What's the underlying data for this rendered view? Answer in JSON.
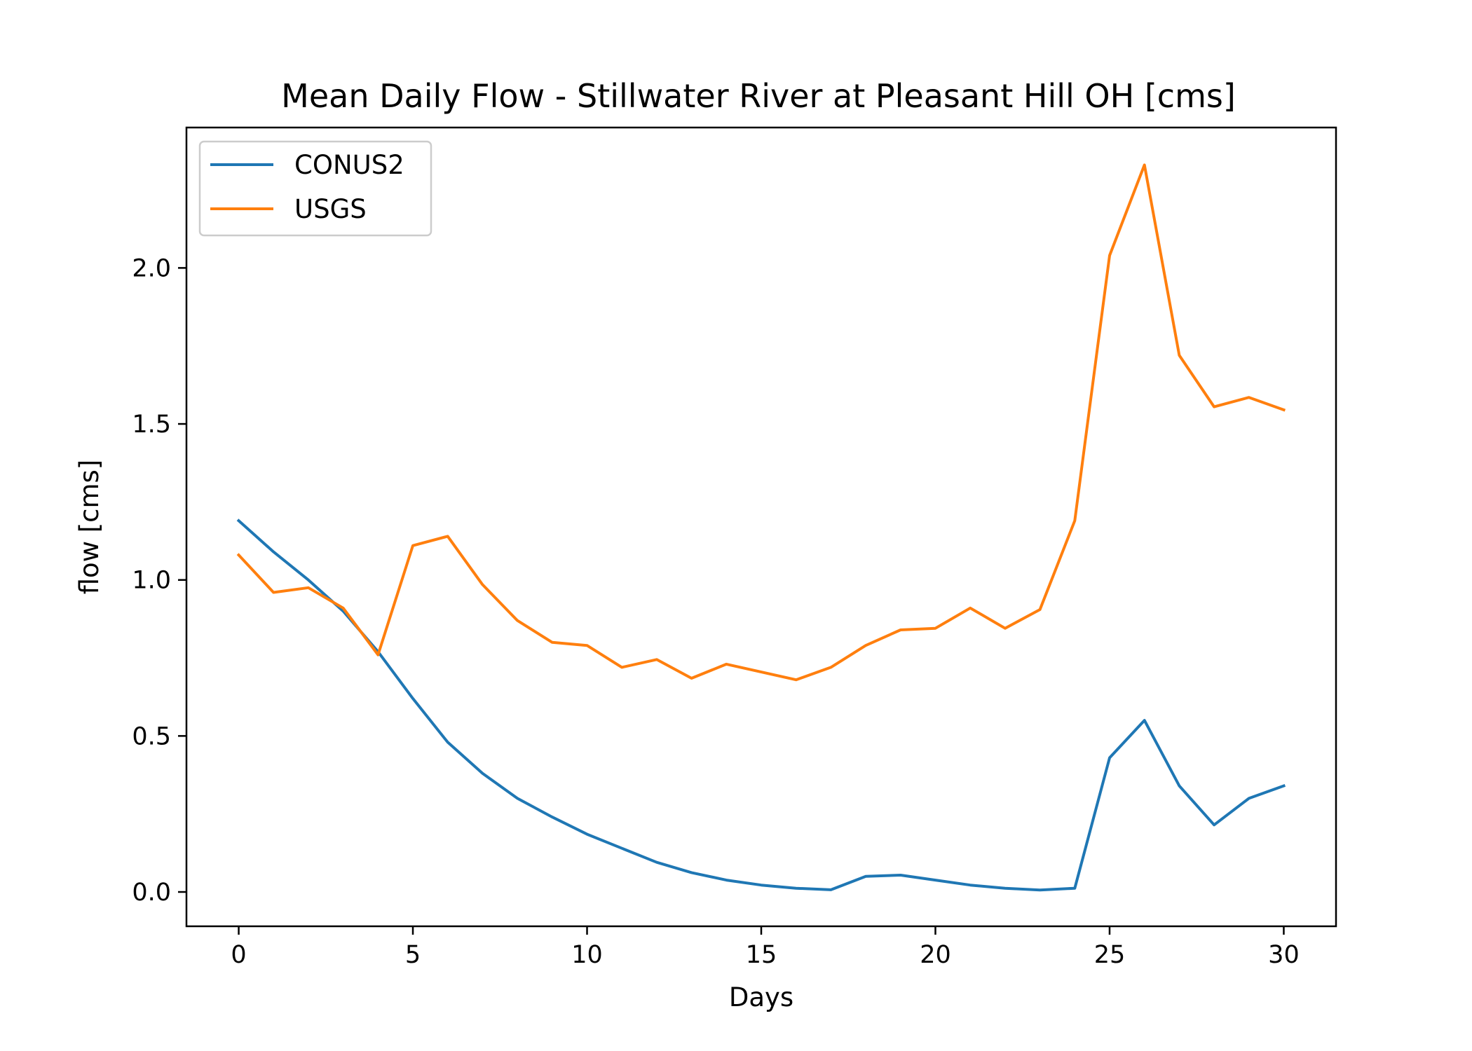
{
  "chart_data": {
    "type": "line",
    "title": "Mean Daily Flow - Stillwater River at Pleasant Hill OH [cms]",
    "xlabel": "Days",
    "ylabel": "flow [cms]",
    "xlim": [
      -1.5,
      31.5
    ],
    "ylim": [
      -0.11,
      2.45
    ],
    "xticks": [
      0,
      5,
      10,
      15,
      20,
      25,
      30
    ],
    "xtick_labels": [
      "0",
      "5",
      "10",
      "15",
      "20",
      "25",
      "30"
    ],
    "yticks": [
      0.0,
      0.5,
      1.0,
      1.5,
      2.0
    ],
    "ytick_labels": [
      "0.0",
      "0.5",
      "1.0",
      "1.5",
      "2.0"
    ],
    "grid": false,
    "legend_position": "top-left",
    "x": [
      0,
      1,
      2,
      3,
      4,
      5,
      6,
      7,
      8,
      9,
      10,
      11,
      12,
      13,
      14,
      15,
      16,
      17,
      18,
      19,
      20,
      21,
      22,
      23,
      24,
      25,
      26,
      27,
      28,
      29,
      30
    ],
    "series": [
      {
        "name": "CONUS2",
        "color": "#1f77b4",
        "values": [
          1.19,
          1.09,
          1.0,
          0.9,
          0.77,
          0.62,
          0.48,
          0.38,
          0.3,
          0.24,
          0.185,
          0.14,
          0.095,
          0.062,
          0.038,
          0.022,
          0.012,
          0.007,
          0.05,
          0.054,
          0.038,
          0.022,
          0.012,
          0.006,
          0.012,
          0.43,
          0.55,
          0.34,
          0.215,
          0.3,
          0.34
        ]
      },
      {
        "name": "USGS",
        "color": "#ff7f0e",
        "values": [
          1.08,
          0.96,
          0.975,
          0.91,
          0.76,
          1.11,
          1.14,
          0.985,
          0.87,
          0.8,
          0.79,
          0.72,
          0.745,
          0.685,
          0.73,
          0.705,
          0.68,
          0.72,
          0.79,
          0.84,
          0.845,
          0.91,
          0.845,
          0.905,
          1.19,
          2.04,
          2.33,
          1.72,
          1.555,
          1.585,
          1.545
        ]
      }
    ]
  }
}
